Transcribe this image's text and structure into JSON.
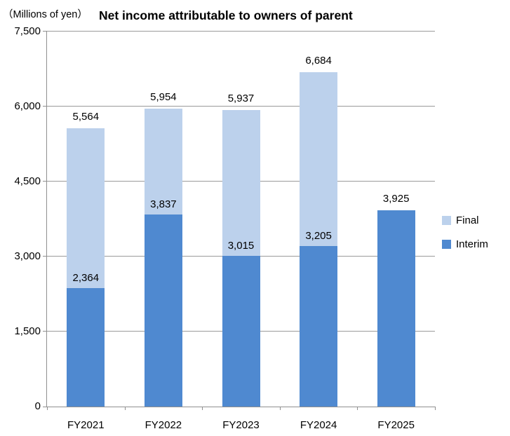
{
  "header": {
    "unit_label": "（Millions of yen）",
    "title": "Net income attributable to owners of parent"
  },
  "colors": {
    "interim": "#4f89d0",
    "final": "#bcd1ec",
    "gridline": "#9a9a9a",
    "axis": "#8f8f8f",
    "text": "#000000"
  },
  "legend": {
    "items": [
      {
        "label": "Final",
        "color_key": "final"
      },
      {
        "label": "Interim",
        "color_key": "interim"
      }
    ]
  },
  "chart_data": {
    "type": "bar",
    "stacked": true,
    "title": "Net income attributable to owners of parent",
    "unit": "Millions of yen",
    "categories": [
      "FY2021",
      "FY2022",
      "FY2023",
      "FY2024",
      "FY2025"
    ],
    "series": [
      {
        "name": "Interim",
        "values": [
          2364,
          3837,
          3015,
          3205,
          3925
        ]
      },
      {
        "name": "Final",
        "values": [
          3200,
          2117,
          2922,
          3479,
          0
        ]
      }
    ],
    "totals": [
      5564,
      5954,
      5937,
      6684,
      3925
    ],
    "total_labels": [
      "5,564",
      "5,954",
      "5,937",
      "6,684",
      "3,925"
    ],
    "interim_labels": [
      "2,364",
      "3,837",
      "3,015",
      "3,205",
      ""
    ],
    "ylim": [
      0,
      7500
    ],
    "yticks": [
      0,
      1500,
      3000,
      4500,
      6000,
      7500
    ],
    "ytick_labels": [
      "0",
      "1,500",
      "3,000",
      "4,500",
      "6,000",
      "7,500"
    ],
    "grid": true,
    "legend_position": "right"
  }
}
